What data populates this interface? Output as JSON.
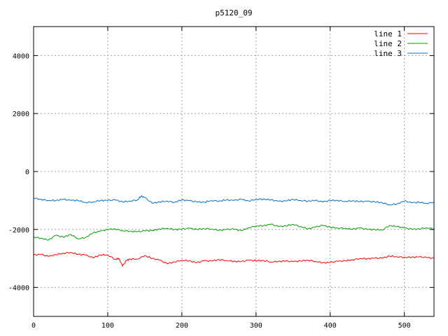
{
  "chart_data": {
    "type": "line",
    "title": "p5120_09",
    "xlabel": "",
    "ylabel": "",
    "xlim": [
      0,
      540
    ],
    "ylim": [
      -5000,
      5000
    ],
    "xticks": [
      0,
      100,
      200,
      300,
      400,
      500
    ],
    "yticks": [
      -4000,
      -2000,
      0,
      2000,
      4000
    ],
    "grid": true,
    "legend_position": "top-right",
    "series": [
      {
        "name": "line 1",
        "color": "#ff0000",
        "x": [
          0,
          10,
          20,
          30,
          40,
          50,
          60,
          70,
          80,
          90,
          100,
          110,
          115,
          120,
          125,
          130,
          140,
          150,
          160,
          170,
          180,
          190,
          200,
          210,
          220,
          230,
          240,
          250,
          260,
          270,
          280,
          290,
          300,
          310,
          320,
          330,
          340,
          350,
          360,
          370,
          380,
          390,
          400,
          410,
          420,
          430,
          440,
          450,
          460,
          470,
          480,
          490,
          500,
          510,
          520,
          530,
          540
        ],
        "y": [
          -2880,
          -2860,
          -2930,
          -2870,
          -2820,
          -2790,
          -2860,
          -2880,
          -2980,
          -2880,
          -2880,
          -3030,
          -3000,
          -3260,
          -3080,
          -3020,
          -3020,
          -2900,
          -3000,
          -3060,
          -3180,
          -3120,
          -3060,
          -3080,
          -3150,
          -3080,
          -3090,
          -3040,
          -3070,
          -3100,
          -3110,
          -3060,
          -3080,
          -3070,
          -3120,
          -3100,
          -3090,
          -3110,
          -3090,
          -3060,
          -3100,
          -3150,
          -3140,
          -3100,
          -3080,
          -3050,
          -3000,
          -3010,
          -2990,
          -2990,
          -2920,
          -2940,
          -2960,
          -2960,
          -2950,
          -2970,
          -2990
        ]
      },
      {
        "name": "line 2",
        "color": "#00a000",
        "x": [
          0,
          10,
          20,
          30,
          40,
          50,
          60,
          70,
          80,
          90,
          100,
          110,
          120,
          130,
          140,
          150,
          160,
          170,
          180,
          190,
          200,
          210,
          220,
          230,
          240,
          250,
          260,
          270,
          280,
          290,
          300,
          310,
          320,
          330,
          340,
          350,
          360,
          370,
          380,
          390,
          400,
          410,
          420,
          430,
          440,
          450,
          460,
          470,
          480,
          490,
          500,
          510,
          520,
          530,
          540
        ],
        "y": [
          -2260,
          -2300,
          -2370,
          -2200,
          -2270,
          -2170,
          -2320,
          -2280,
          -2120,
          -2060,
          -2000,
          -1980,
          -2040,
          -2060,
          -2080,
          -2050,
          -2040,
          -1980,
          -1960,
          -2000,
          -1990,
          -1960,
          -2000,
          -1970,
          -1980,
          -2030,
          -2000,
          -1990,
          -2040,
          -1940,
          -1880,
          -1870,
          -1820,
          -1900,
          -1880,
          -1820,
          -1900,
          -1980,
          -1920,
          -1860,
          -1920,
          -1950,
          -1960,
          -1990,
          -1950,
          -2000,
          -2000,
          -2020,
          -1860,
          -1900,
          -1950,
          -1990,
          -1980,
          -1940,
          -1980
        ]
      },
      {
        "name": "line 3",
        "color": "#0070cc",
        "x": [
          0,
          10,
          20,
          30,
          40,
          50,
          60,
          70,
          80,
          90,
          100,
          110,
          120,
          130,
          140,
          145,
          150,
          160,
          170,
          180,
          190,
          200,
          210,
          220,
          230,
          240,
          250,
          260,
          270,
          280,
          290,
          300,
          310,
          320,
          330,
          340,
          350,
          360,
          370,
          380,
          390,
          400,
          410,
          420,
          430,
          440,
          450,
          460,
          470,
          480,
          490,
          500,
          510,
          520,
          530,
          540
        ],
        "y": [
          -920,
          -960,
          -1000,
          -1000,
          -960,
          -1000,
          -1000,
          -1070,
          -1050,
          -1000,
          -1000,
          -980,
          -1050,
          -1020,
          -980,
          -850,
          -900,
          -1100,
          -1050,
          -1020,
          -1060,
          -980,
          -1010,
          -1050,
          -1060,
          -1000,
          -1020,
          -980,
          -1000,
          -960,
          -1020,
          -960,
          -950,
          -980,
          -1030,
          -1020,
          -960,
          -1000,
          -1020,
          -1000,
          -1050,
          -1000,
          -1000,
          -1030,
          -1010,
          -1040,
          -1030,
          -1050,
          -1070,
          -1150,
          -1120,
          -1020,
          -1080,
          -1060,
          -1100,
          -1050
        ]
      }
    ]
  }
}
